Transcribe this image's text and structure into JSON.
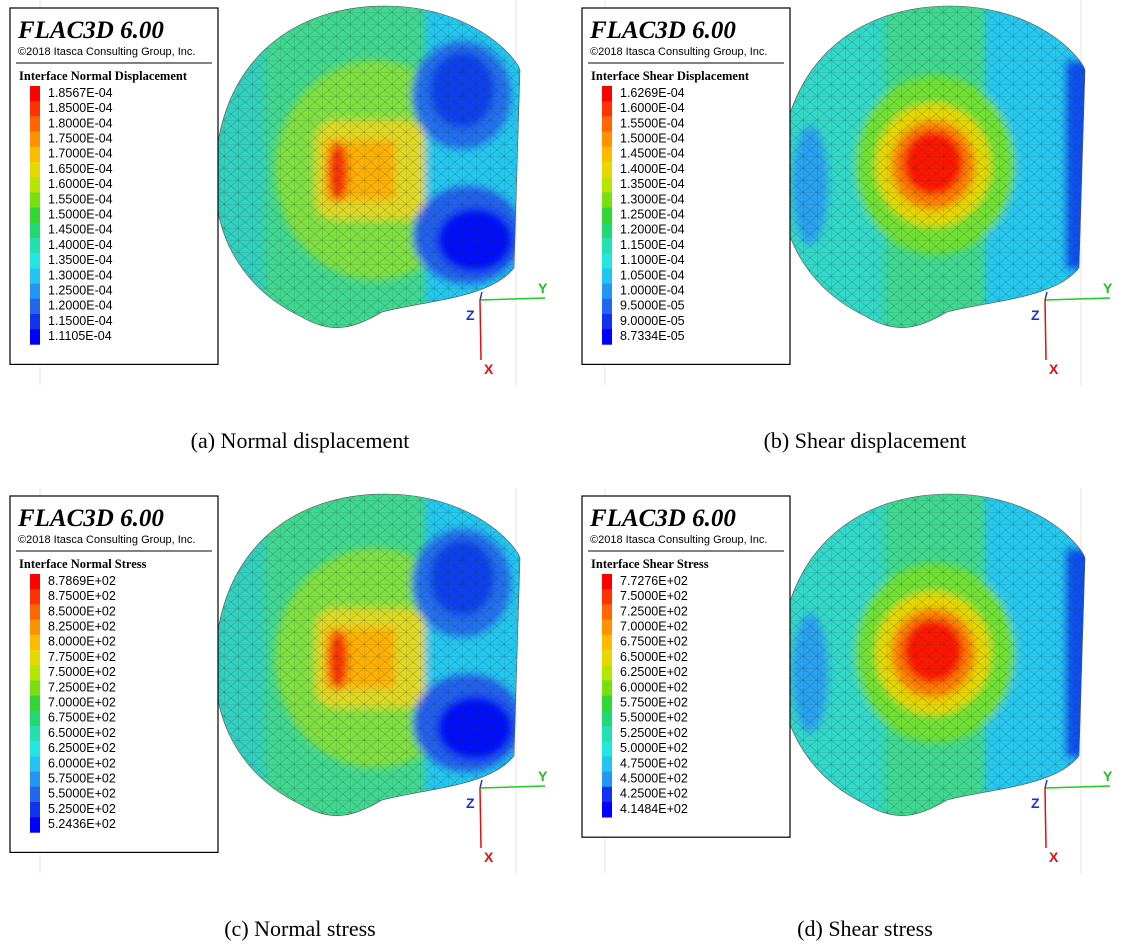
{
  "panels": [
    {
      "title": "FLAC3D 6.00",
      "copyright": "©2018 Itasca Consulting Group, Inc.",
      "legend_title": "Interface Normal Displacement",
      "legend": [
        {
          "label": "1.8567E-04",
          "color": "#ff0000"
        },
        {
          "label": "1.8500E-04",
          "color": "#ff3300"
        },
        {
          "label": "1.8000E-04",
          "color": "#ff6600"
        },
        {
          "label": "1.7500E-04",
          "color": "#ff9200"
        },
        {
          "label": "1.7000E-04",
          "color": "#ffbb00"
        },
        {
          "label": "1.6500E-04",
          "color": "#e6d800"
        },
        {
          "label": "1.6000E-04",
          "color": "#b4e600"
        },
        {
          "label": "1.5500E-04",
          "color": "#78e010"
        },
        {
          "label": "1.5000E-04",
          "color": "#33d633"
        },
        {
          "label": "1.4500E-04",
          "color": "#22d872"
        },
        {
          "label": "1.4000E-04",
          "color": "#22e0b0"
        },
        {
          "label": "1.3500E-04",
          "color": "#22e6e0"
        },
        {
          "label": "1.3000E-04",
          "color": "#22c4f2"
        },
        {
          "label": "1.2500E-04",
          "color": "#2296f2"
        },
        {
          "label": "1.2000E-04",
          "color": "#2266f0"
        },
        {
          "label": "1.1500E-04",
          "color": "#1133f0"
        },
        {
          "label": "1.1105E-04",
          "color": "#0000ff"
        }
      ],
      "axes": {
        "y": "Y",
        "z": "Z",
        "x": "X"
      },
      "caption": "(a) Normal displacement"
    },
    {
      "title": "FLAC3D 6.00",
      "copyright": "©2018 Itasca Consulting Group, Inc.",
      "legend_title": "Interface Shear Displacement",
      "legend": [
        {
          "label": "1.6269E-04",
          "color": "#ff0000"
        },
        {
          "label": "1.6000E-04",
          "color": "#ff3300"
        },
        {
          "label": "1.5500E-04",
          "color": "#ff6600"
        },
        {
          "label": "1.5000E-04",
          "color": "#ff9200"
        },
        {
          "label": "1.4500E-04",
          "color": "#ffbb00"
        },
        {
          "label": "1.4000E-04",
          "color": "#e6d800"
        },
        {
          "label": "1.3500E-04",
          "color": "#b4e600"
        },
        {
          "label": "1.3000E-04",
          "color": "#78e010"
        },
        {
          "label": "1.2500E-04",
          "color": "#33d633"
        },
        {
          "label": "1.2000E-04",
          "color": "#22d872"
        },
        {
          "label": "1.1500E-04",
          "color": "#22e0b0"
        },
        {
          "label": "1.1000E-04",
          "color": "#22e6e0"
        },
        {
          "label": "1.0500E-04",
          "color": "#22c4f2"
        },
        {
          "label": "1.0000E-04",
          "color": "#2296f2"
        },
        {
          "label": "9.5000E-05",
          "color": "#2266f0"
        },
        {
          "label": "9.0000E-05",
          "color": "#1133f0"
        },
        {
          "label": "8.7334E-05",
          "color": "#0000ff"
        }
      ],
      "axes": {
        "y": "Y",
        "z": "Z",
        "x": "X"
      },
      "caption": "(b) Shear displacement"
    },
    {
      "title": "FLAC3D 6.00",
      "copyright": "©2018 Itasca Consulting Group, Inc.",
      "legend_title": "Interface Normal Stress",
      "legend": [
        {
          "label": "8.7869E+02",
          "color": "#ff0000"
        },
        {
          "label": "8.7500E+02",
          "color": "#ff3300"
        },
        {
          "label": "8.5000E+02",
          "color": "#ff6600"
        },
        {
          "label": "8.2500E+02",
          "color": "#ff9200"
        },
        {
          "label": "8.0000E+02",
          "color": "#ffbb00"
        },
        {
          "label": "7.7500E+02",
          "color": "#e6d800"
        },
        {
          "label": "7.5000E+02",
          "color": "#b4e600"
        },
        {
          "label": "7.2500E+02",
          "color": "#78e010"
        },
        {
          "label": "7.0000E+02",
          "color": "#33d633"
        },
        {
          "label": "6.7500E+02",
          "color": "#22d872"
        },
        {
          "label": "6.5000E+02",
          "color": "#22e0b0"
        },
        {
          "label": "6.2500E+02",
          "color": "#22e6e0"
        },
        {
          "label": "6.0000E+02",
          "color": "#22c4f2"
        },
        {
          "label": "5.7500E+02",
          "color": "#2296f2"
        },
        {
          "label": "5.5000E+02",
          "color": "#2266f0"
        },
        {
          "label": "5.2500E+02",
          "color": "#1133f0"
        },
        {
          "label": "5.2436E+02",
          "color": "#0000ff"
        }
      ],
      "axes": {
        "y": "Y",
        "z": "Z",
        "x": "X"
      },
      "caption": "(c) Normal stress"
    },
    {
      "title": "FLAC3D 6.00",
      "copyright": "©2018 Itasca Consulting Group, Inc.",
      "legend_title": "Interface Shear Stress",
      "legend": [
        {
          "label": "7.7276E+02",
          "color": "#ff0000"
        },
        {
          "label": "7.5000E+02",
          "color": "#ff3300"
        },
        {
          "label": "7.2500E+02",
          "color": "#ff6600"
        },
        {
          "label": "7.0000E+02",
          "color": "#ff9200"
        },
        {
          "label": "6.7500E+02",
          "color": "#ffbb00"
        },
        {
          "label": "6.5000E+02",
          "color": "#e6d800"
        },
        {
          "label": "6.2500E+02",
          "color": "#b4e600"
        },
        {
          "label": "6.0000E+02",
          "color": "#78e010"
        },
        {
          "label": "5.7500E+02",
          "color": "#33d633"
        },
        {
          "label": "5.5000E+02",
          "color": "#22d872"
        },
        {
          "label": "5.2500E+02",
          "color": "#22e0b0"
        },
        {
          "label": "5.0000E+02",
          "color": "#22e6e0"
        },
        {
          "label": "4.7500E+02",
          "color": "#22c4f2"
        },
        {
          "label": "4.5000E+02",
          "color": "#2296f2"
        },
        {
          "label": "4.2500E+02",
          "color": "#1133f0"
        },
        {
          "label": "4.1484E+02",
          "color": "#0000ff"
        }
      ],
      "axes": {
        "y": "Y",
        "z": "Z",
        "x": "X"
      },
      "caption": "(d) Shear stress"
    }
  ]
}
